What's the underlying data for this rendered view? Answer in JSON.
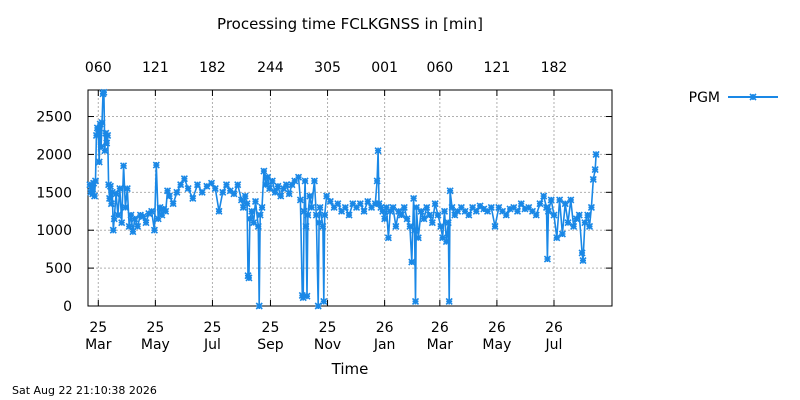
{
  "chart_data": {
    "type": "line",
    "title": "Processing time FCLKGNSS in [min]",
    "xlabel": "Time",
    "ylabel": "",
    "ylim": [
      0,
      2850
    ],
    "yticks": [
      0,
      500,
      1000,
      1500,
      2000,
      2500
    ],
    "grid": true,
    "legend_position": "outside-right",
    "x_start": "2025-02-18",
    "x_end": "2026-09-01",
    "bottom_ticks": [
      {
        "date": "2025-03-01",
        "day": "25",
        "month": "Mar"
      },
      {
        "date": "2025-05-01",
        "day": "25",
        "month": "May"
      },
      {
        "date": "2025-07-01",
        "day": "25",
        "month": "Jul"
      },
      {
        "date": "2025-09-01",
        "day": "25",
        "month": "Sep"
      },
      {
        "date": "2025-11-01",
        "day": "25",
        "month": "Nov"
      },
      {
        "date": "2026-01-01",
        "day": "26",
        "month": "Jan"
      },
      {
        "date": "2026-03-01",
        "day": "26",
        "month": "Mar"
      },
      {
        "date": "2026-05-01",
        "day": "26",
        "month": "May"
      },
      {
        "date": "2026-07-01",
        "day": "26",
        "month": "Jul"
      }
    ],
    "top_ticks": [
      {
        "date": "2025-03-01",
        "label": "060"
      },
      {
        "date": "2025-05-01",
        "label": "121"
      },
      {
        "date": "2025-07-01",
        "label": "182"
      },
      {
        "date": "2025-09-01",
        "label": "244"
      },
      {
        "date": "2025-11-01",
        "label": "305"
      },
      {
        "date": "2026-01-01",
        "label": "001"
      },
      {
        "date": "2026-03-01",
        "label": "060"
      },
      {
        "date": "2026-05-01",
        "label": "121"
      },
      {
        "date": "2026-07-01",
        "label": "182"
      }
    ],
    "series": [
      {
        "name": "PGM",
        "color": "#1a88e6",
        "marker": "x",
        "points": [
          [
            "2025-02-20",
            1600
          ],
          [
            "2025-02-21",
            1500
          ],
          [
            "2025-02-22",
            1580
          ],
          [
            "2025-02-23",
            1480
          ],
          [
            "2025-02-24",
            1620
          ],
          [
            "2025-02-25",
            1450
          ],
          [
            "2025-02-26",
            1650
          ],
          [
            "2025-02-27",
            2250
          ],
          [
            "2025-02-28",
            2350
          ],
          [
            "2025-03-01",
            2300
          ],
          [
            "2025-03-02",
            1900
          ],
          [
            "2025-03-03",
            2400
          ],
          [
            "2025-03-04",
            2100
          ],
          [
            "2025-03-05",
            2420
          ],
          [
            "2025-03-06",
            2800
          ],
          [
            "2025-03-07",
            2820
          ],
          [
            "2025-03-08",
            2050
          ],
          [
            "2025-03-09",
            2280
          ],
          [
            "2025-03-10",
            2150
          ],
          [
            "2025-03-11",
            2250
          ],
          [
            "2025-03-12",
            1600
          ],
          [
            "2025-03-13",
            1420
          ],
          [
            "2025-03-14",
            1580
          ],
          [
            "2025-03-15",
            1350
          ],
          [
            "2025-03-16",
            1500
          ],
          [
            "2025-03-17",
            1000
          ],
          [
            "2025-03-18",
            1150
          ],
          [
            "2025-03-20",
            1480
          ],
          [
            "2025-03-22",
            1200
          ],
          [
            "2025-03-24",
            1550
          ],
          [
            "2025-03-26",
            1100
          ],
          [
            "2025-03-28",
            1850
          ],
          [
            "2025-03-30",
            1300
          ],
          [
            "2025-04-01",
            1550
          ],
          [
            "2025-04-03",
            1050
          ],
          [
            "2025-04-05",
            1200
          ],
          [
            "2025-04-07",
            980
          ],
          [
            "2025-04-09",
            1150
          ],
          [
            "2025-04-12",
            1050
          ],
          [
            "2025-04-15",
            1200
          ],
          [
            "2025-04-18",
            1180
          ],
          [
            "2025-04-21",
            1100
          ],
          [
            "2025-04-24",
            1220
          ],
          [
            "2025-04-27",
            1250
          ],
          [
            "2025-04-30",
            1000
          ],
          [
            "2025-05-02",
            1860
          ],
          [
            "2025-05-04",
            1150
          ],
          [
            "2025-05-06",
            1300
          ],
          [
            "2025-05-08",
            1200
          ],
          [
            "2025-05-10",
            1280
          ],
          [
            "2025-05-12",
            1250
          ],
          [
            "2025-05-14",
            1520
          ],
          [
            "2025-05-16",
            1450
          ],
          [
            "2025-05-20",
            1350
          ],
          [
            "2025-05-24",
            1500
          ],
          [
            "2025-05-28",
            1600
          ],
          [
            "2025-06-01",
            1680
          ],
          [
            "2025-06-05",
            1550
          ],
          [
            "2025-06-10",
            1420
          ],
          [
            "2025-06-15",
            1600
          ],
          [
            "2025-06-20",
            1500
          ],
          [
            "2025-06-25",
            1580
          ],
          [
            "2025-06-30",
            1620
          ],
          [
            "2025-07-04",
            1550
          ],
          [
            "2025-07-08",
            1250
          ],
          [
            "2025-07-12",
            1500
          ],
          [
            "2025-07-16",
            1600
          ],
          [
            "2025-07-20",
            1520
          ],
          [
            "2025-07-24",
            1480
          ],
          [
            "2025-07-28",
            1600
          ],
          [
            "2025-08-01",
            1400
          ],
          [
            "2025-08-03",
            1300
          ],
          [
            "2025-08-05",
            1450
          ],
          [
            "2025-08-07",
            1350
          ],
          [
            "2025-08-08",
            400
          ],
          [
            "2025-08-09",
            370
          ],
          [
            "2025-08-10",
            1150
          ],
          [
            "2025-08-12",
            1250
          ],
          [
            "2025-08-14",
            1100
          ],
          [
            "2025-08-16",
            1380
          ],
          [
            "2025-08-19",
            1050
          ],
          [
            "2025-08-20",
            0
          ],
          [
            "2025-08-21",
            1200
          ],
          [
            "2025-08-23",
            1300
          ],
          [
            "2025-08-25",
            1780
          ],
          [
            "2025-08-27",
            1600
          ],
          [
            "2025-08-29",
            1700
          ],
          [
            "2025-08-31",
            1550
          ],
          [
            "2025-09-03",
            1650
          ],
          [
            "2025-09-06",
            1500
          ],
          [
            "2025-09-09",
            1580
          ],
          [
            "2025-09-12",
            1450
          ],
          [
            "2025-09-15",
            1550
          ],
          [
            "2025-09-18",
            1600
          ],
          [
            "2025-09-21",
            1480
          ],
          [
            "2025-09-24",
            1600
          ],
          [
            "2025-09-27",
            1650
          ],
          [
            "2025-10-01",
            1700
          ],
          [
            "2025-10-03",
            1400
          ],
          [
            "2025-10-05",
            140
          ],
          [
            "2025-10-06",
            110
          ],
          [
            "2025-10-07",
            1250
          ],
          [
            "2025-10-08",
            1650
          ],
          [
            "2025-10-09",
            1050
          ],
          [
            "2025-10-10",
            130
          ],
          [
            "2025-10-11",
            1200
          ],
          [
            "2025-10-13",
            1450
          ],
          [
            "2025-10-15",
            1300
          ],
          [
            "2025-10-18",
            1650
          ],
          [
            "2025-10-20",
            1200
          ],
          [
            "2025-10-22",
            0
          ],
          [
            "2025-10-23",
            1100
          ],
          [
            "2025-10-24",
            1300
          ],
          [
            "2025-10-27",
            1050
          ],
          [
            "2025-10-28",
            60
          ],
          [
            "2025-10-29",
            1200
          ],
          [
            "2025-10-31",
            1450
          ],
          [
            "2025-11-04",
            1380
          ],
          [
            "2025-11-08",
            1300
          ],
          [
            "2025-11-12",
            1350
          ],
          [
            "2025-11-16",
            1250
          ],
          [
            "2025-11-20",
            1300
          ],
          [
            "2025-11-24",
            1200
          ],
          [
            "2025-11-28",
            1350
          ],
          [
            "2025-12-02",
            1300
          ],
          [
            "2025-12-06",
            1350
          ],
          [
            "2025-12-10",
            1250
          ],
          [
            "2025-12-14",
            1380
          ],
          [
            "2025-12-18",
            1300
          ],
          [
            "2025-12-22",
            1350
          ],
          [
            "2025-12-24",
            1650
          ],
          [
            "2025-12-25",
            2050
          ],
          [
            "2025-12-26",
            1350
          ],
          [
            "2025-12-28",
            1300
          ],
          [
            "2025-12-30",
            1250
          ],
          [
            "2026-01-01",
            1150
          ],
          [
            "2026-01-03",
            1300
          ],
          [
            "2026-01-05",
            900
          ],
          [
            "2026-01-07",
            1250
          ],
          [
            "2026-01-10",
            1300
          ],
          [
            "2026-01-13",
            1050
          ],
          [
            "2026-01-16",
            1250
          ],
          [
            "2026-01-19",
            1200
          ],
          [
            "2026-01-22",
            1300
          ],
          [
            "2026-01-25",
            1150
          ],
          [
            "2026-01-28",
            1050
          ],
          [
            "2026-01-30",
            580
          ],
          [
            "2026-02-01",
            1420
          ],
          [
            "2026-02-02",
            1000
          ],
          [
            "2026-02-03",
            60
          ],
          [
            "2026-02-04",
            1300
          ],
          [
            "2026-02-06",
            900
          ],
          [
            "2026-02-09",
            1250
          ],
          [
            "2026-02-12",
            1150
          ],
          [
            "2026-02-15",
            1300
          ],
          [
            "2026-02-18",
            1200
          ],
          [
            "2026-02-21",
            1100
          ],
          [
            "2026-02-24",
            1350
          ],
          [
            "2026-02-27",
            1200
          ],
          [
            "2026-03-02",
            1050
          ],
          [
            "2026-03-04",
            900
          ],
          [
            "2026-03-06",
            1250
          ],
          [
            "2026-03-08",
            850
          ],
          [
            "2026-03-10",
            1100
          ],
          [
            "2026-03-11",
            60
          ],
          [
            "2026-03-12",
            1520
          ],
          [
            "2026-03-14",
            1300
          ],
          [
            "2026-03-17",
            1200
          ],
          [
            "2026-03-20",
            1250
          ],
          [
            "2026-03-24",
            1300
          ],
          [
            "2026-03-28",
            1250
          ],
          [
            "2026-04-01",
            1200
          ],
          [
            "2026-04-05",
            1300
          ],
          [
            "2026-04-09",
            1250
          ],
          [
            "2026-04-13",
            1320
          ],
          [
            "2026-04-17",
            1280
          ],
          [
            "2026-04-21",
            1250
          ],
          [
            "2026-04-25",
            1300
          ],
          [
            "2026-04-29",
            1050
          ],
          [
            "2026-05-03",
            1300
          ],
          [
            "2026-05-07",
            1250
          ],
          [
            "2026-05-11",
            1200
          ],
          [
            "2026-05-15",
            1280
          ],
          [
            "2026-05-19",
            1300
          ],
          [
            "2026-05-23",
            1250
          ],
          [
            "2026-05-27",
            1350
          ],
          [
            "2026-05-31",
            1280
          ],
          [
            "2026-06-04",
            1300
          ],
          [
            "2026-06-08",
            1250
          ],
          [
            "2026-06-12",
            1200
          ],
          [
            "2026-06-16",
            1350
          ],
          [
            "2026-06-20",
            1450
          ],
          [
            "2026-06-23",
            1300
          ],
          [
            "2026-06-24",
            620
          ],
          [
            "2026-06-25",
            1250
          ],
          [
            "2026-06-28",
            1400
          ],
          [
            "2026-07-01",
            1200
          ],
          [
            "2026-07-04",
            900
          ],
          [
            "2026-07-07",
            1400
          ],
          [
            "2026-07-10",
            950
          ],
          [
            "2026-07-13",
            1350
          ],
          [
            "2026-07-16",
            1100
          ],
          [
            "2026-07-19",
            1400
          ],
          [
            "2026-07-22",
            1050
          ],
          [
            "2026-07-25",
            1150
          ],
          [
            "2026-07-28",
            1200
          ],
          [
            "2026-07-31",
            700
          ],
          [
            "2026-08-01",
            600
          ],
          [
            "2026-08-03",
            1100
          ],
          [
            "2026-08-06",
            1200
          ],
          [
            "2026-08-08",
            1050
          ],
          [
            "2026-08-10",
            1300
          ],
          [
            "2026-08-12",
            1670
          ],
          [
            "2026-08-14",
            1800
          ],
          [
            "2026-08-15",
            2000
          ]
        ]
      }
    ]
  },
  "footer": {
    "timestamp": "Sat Aug 22 21:10:38 2026"
  }
}
